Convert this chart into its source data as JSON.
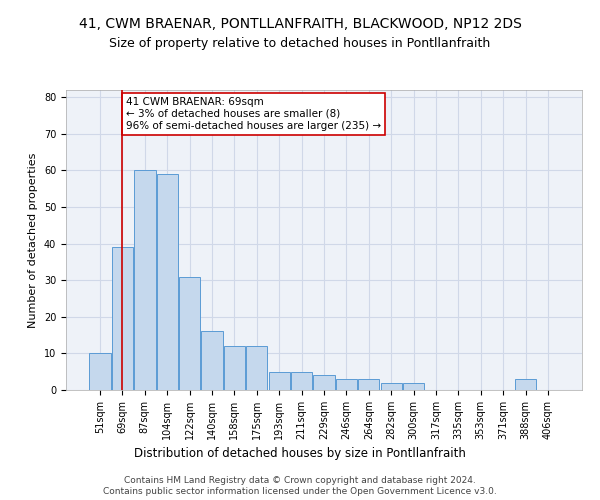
{
  "title1": "41, CWM BRAENAR, PONTLLANFRAITH, BLACKWOOD, NP12 2DS",
  "title2": "Size of property relative to detached houses in Pontllanfraith",
  "xlabel": "Distribution of detached houses by size in Pontllanfraith",
  "ylabel": "Number of detached properties",
  "categories": [
    "51sqm",
    "69sqm",
    "87sqm",
    "104sqm",
    "122sqm",
    "140sqm",
    "158sqm",
    "175sqm",
    "193sqm",
    "211sqm",
    "229sqm",
    "246sqm",
    "264sqm",
    "282sqm",
    "300sqm",
    "317sqm",
    "335sqm",
    "353sqm",
    "371sqm",
    "388sqm",
    "406sqm"
  ],
  "values": [
    10,
    39,
    60,
    59,
    31,
    16,
    12,
    12,
    5,
    5,
    4,
    3,
    3,
    2,
    2,
    0,
    0,
    0,
    0,
    3,
    0
  ],
  "bar_color": "#c5d8ed",
  "bar_edge_color": "#5b9bd5",
  "highlight_bar_index": 1,
  "highlight_line_color": "#cc0000",
  "annotation_text": "41 CWM BRAENAR: 69sqm\n← 3% of detached houses are smaller (8)\n96% of semi-detached houses are larger (235) →",
  "annotation_box_color": "#ffffff",
  "annotation_box_edge": "#cc0000",
  "ylim": [
    0,
    82
  ],
  "yticks": [
    0,
    10,
    20,
    30,
    40,
    50,
    60,
    70,
    80
  ],
  "grid_color": "#d0d8e8",
  "background_color": "#eef2f8",
  "footer1": "Contains HM Land Registry data © Crown copyright and database right 2024.",
  "footer2": "Contains public sector information licensed under the Open Government Licence v3.0.",
  "title1_fontsize": 10,
  "title2_fontsize": 9,
  "xlabel_fontsize": 8.5,
  "ylabel_fontsize": 8,
  "tick_fontsize": 7,
  "annotation_fontsize": 7.5,
  "footer_fontsize": 6.5
}
